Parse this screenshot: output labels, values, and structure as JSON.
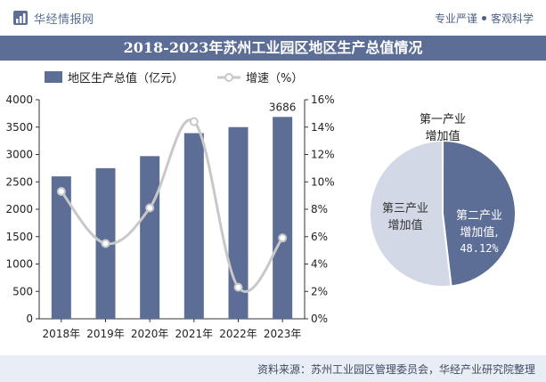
{
  "header": {
    "brand": "华经情报网",
    "slogan_left": "专业严谨",
    "slogan_right": "客观科学"
  },
  "title": "2018-2023年苏州工业园区地区生产总值情况",
  "source": "资料来源：苏州工业园区管理委员会，华经产业研究院整理",
  "colors": {
    "bar": "#5c6d96",
    "line": "#c8c8c8",
    "pie_secondary": "#5c6d96",
    "pie_tertiary": "#d3d8e6"
  },
  "chart_data": [
    {
      "type": "bar",
      "categories": [
        "2018年",
        "2019年",
        "2020年",
        "2021年",
        "2022年",
        "2023年"
      ],
      "series": [
        {
          "name": "地区生产总值（亿元）",
          "type": "bar",
          "axis": "left",
          "values": [
            2600,
            2750,
            2970,
            3390,
            3500,
            3686
          ]
        },
        {
          "name": "增速（%）",
          "type": "line",
          "axis": "right",
          "values": [
            9.3,
            5.5,
            8.1,
            14.4,
            2.3,
            5.9
          ]
        }
      ],
      "data_labels": {
        "last_bar": "3686"
      },
      "ylim_left": [
        0,
        4000
      ],
      "yticks_left": [
        "0",
        "500",
        "1000",
        "1500",
        "2000",
        "2500",
        "3000",
        "3500",
        "4000"
      ],
      "ylim_right": [
        0,
        16
      ],
      "yticks_right": [
        "0%",
        "2%",
        "4%",
        "6%",
        "8%",
        "10%",
        "12%",
        "14%",
        "16%"
      ],
      "legend_placement": "top-left",
      "grid": false
    },
    {
      "type": "pie",
      "slices": [
        {
          "label": "第一产业增加值",
          "label_lines": [
            "第一产业",
            "增加值"
          ],
          "value": 0.02
        },
        {
          "label": "第二产业增加值",
          "label_lines": [
            "第二产业",
            "增加值,"
          ],
          "value": 48.12,
          "value_label": "48.12%"
        },
        {
          "label": "第三产业增加值",
          "label_lines": [
            "第三产业",
            "增加值"
          ],
          "value": 51.86
        }
      ]
    }
  ]
}
